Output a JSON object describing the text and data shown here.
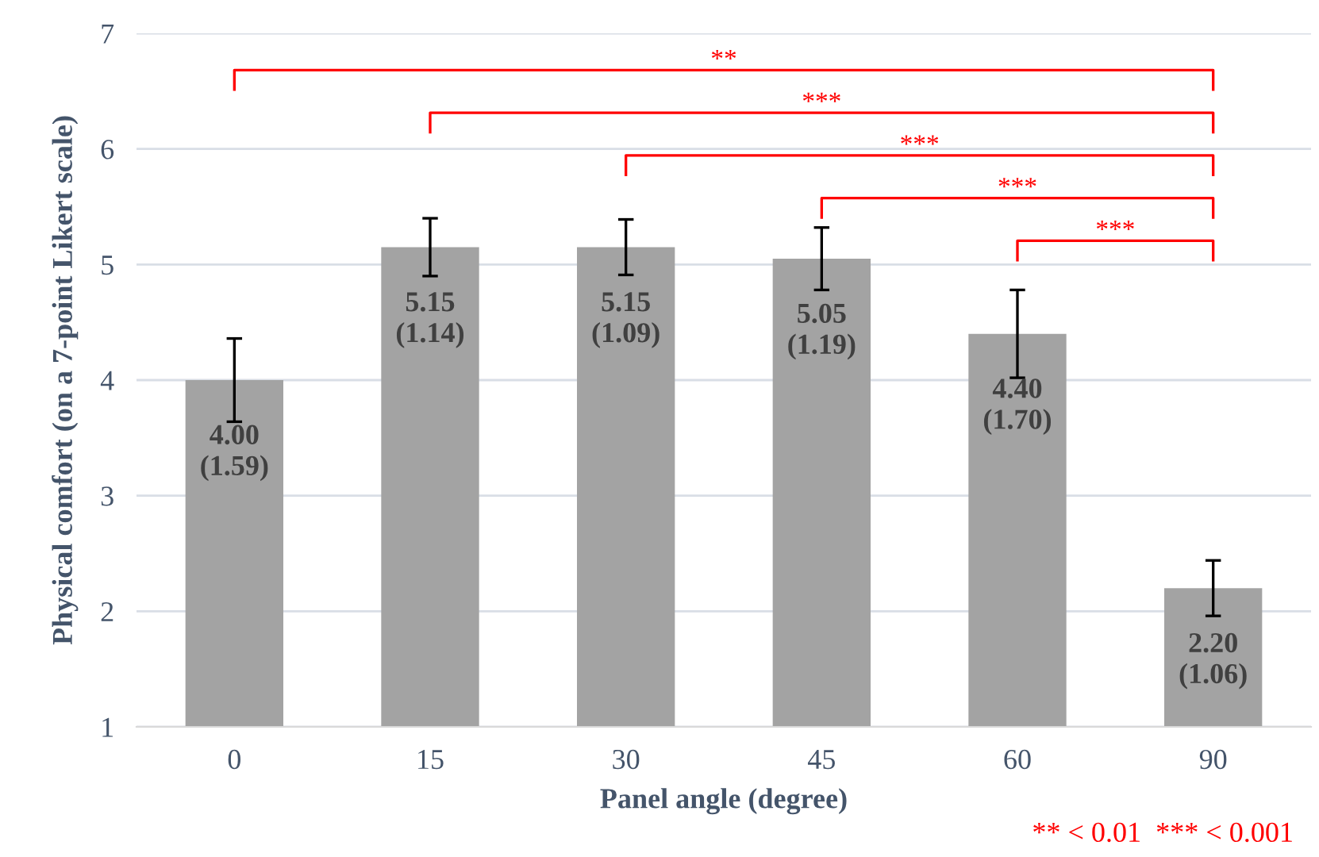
{
  "chart_data": {
    "type": "bar",
    "xlabel": "Panel angle (degree)",
    "ylabel": "Physical comfort (on a 7-point Likert scale)",
    "categories": [
      "0",
      "15",
      "30",
      "45",
      "60",
      "90"
    ],
    "values": [
      4.0,
      5.15,
      5.15,
      5.05,
      4.4,
      2.2
    ],
    "errors": [
      0.36,
      0.25,
      0.24,
      0.27,
      0.38,
      0.24
    ],
    "color": "#a3a3a3",
    "value_labels": [
      "4.00\n(1.59)",
      "5.15\n(1.14)",
      "5.15\n(1.09)",
      "5.05\n(1.19)",
      "4.40\n(1.70)",
      "2.20\n(1.06)"
    ],
    "ylim": [
      1,
      7
    ],
    "yticks": [
      1,
      2,
      3,
      4,
      5,
      6,
      7
    ],
    "grid": "y",
    "annotations": [
      "**",
      "***",
      "***",
      "***",
      "***",
      "** < 0.01  *** < 0.001"
    ]
  }
}
